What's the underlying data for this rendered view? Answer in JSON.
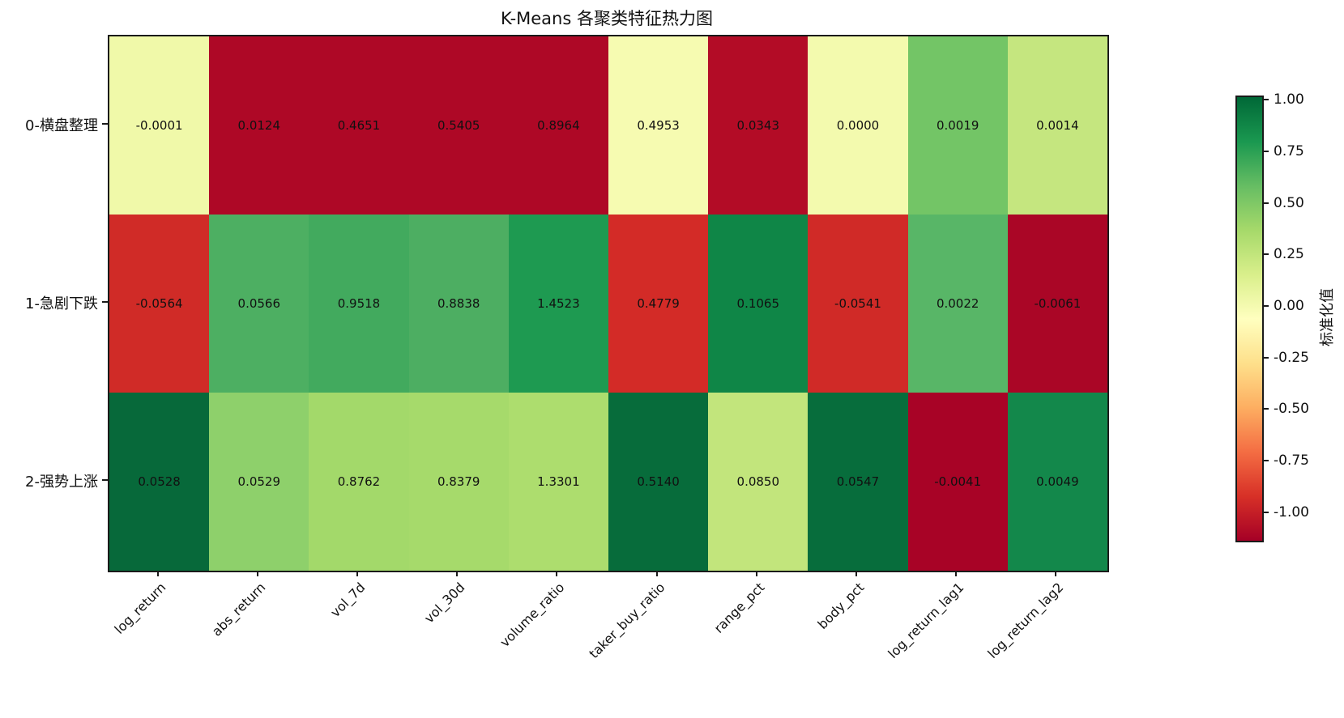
{
  "title": "K-Means 各聚类特征热力图",
  "chart_data": {
    "type": "heatmap",
    "columns": [
      "log_return",
      "abs_return",
      "vol_7d",
      "vol_30d",
      "volume_ratio",
      "taker_buy_ratio",
      "range_pct",
      "body_pct",
      "log_return_lag1",
      "log_return_lag2"
    ],
    "rows": [
      "0-横盘整理",
      "1-急剧下跌",
      "2-强势上涨"
    ],
    "values": [
      [
        -0.0001,
        0.0124,
        0.4651,
        0.5405,
        0.8964,
        0.4953,
        0.0343,
        0.0,
        0.0019,
        0.0014
      ],
      [
        -0.0564,
        0.0566,
        0.9518,
        0.8838,
        1.4523,
        0.4779,
        0.1065,
        -0.0541,
        0.0022,
        -0.0061
      ],
      [
        0.0528,
        0.0529,
        0.8762,
        0.8379,
        1.3301,
        0.514,
        0.085,
        0.0547,
        -0.0041,
        0.0049
      ]
    ],
    "value_decimals": 4,
    "cell_colors": [
      [
        "#f0f9a9",
        "#ae0826",
        "#ae0826",
        "#ae0826",
        "#ae0826",
        "#f6fbb1",
        "#b30c26",
        "#f3faae",
        "#73c566",
        "#c5e67f"
      ],
      [
        "#d02b27",
        "#4daf62",
        "#42aa5e",
        "#4dae62",
        "#1e9a51",
        "#d32b27",
        "#0f8647",
        "#d02a27",
        "#58b667",
        "#aa0626"
      ],
      [
        "#07693a",
        "#8ed06b",
        "#a3d96a",
        "#a6da6b",
        "#addd6e",
        "#076c3b",
        "#c2e57c",
        "#076d3c",
        "#a80326",
        "#13884b"
      ]
    ],
    "grid": false,
    "colorbar": {
      "label": "标准化值",
      "colormap": "RdYlGn",
      "ticks": [
        1.0,
        0.75,
        0.5,
        0.25,
        0.0,
        -0.25,
        -0.5,
        -0.75,
        -1.0
      ],
      "tick_decimals": 2,
      "vmax": 1.02,
      "vmin": -1.13,
      "gradient_top_to_bottom": [
        "#006837",
        "#1a9850",
        "#66bd63",
        "#a6d96a",
        "#d9ef8b",
        "#ffffbf",
        "#fee08b",
        "#fdae61",
        "#f46d43",
        "#d73027",
        "#a50026"
      ]
    }
  }
}
